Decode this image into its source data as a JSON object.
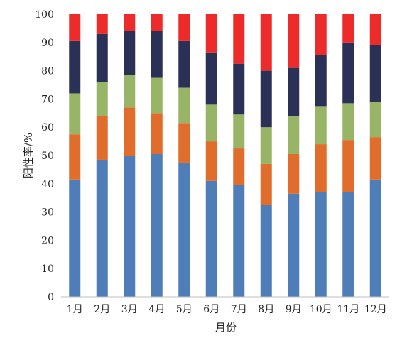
{
  "chart_data": {
    "type": "bar",
    "stacked": true,
    "title": "",
    "xlabel": "月份",
    "ylabel": "阳性率/%",
    "ylim": [
      0,
      100
    ],
    "yticks": [
      0,
      10,
      20,
      30,
      40,
      50,
      60,
      70,
      80,
      90,
      100
    ],
    "grid": false,
    "legend": false,
    "categories": [
      "1月",
      "2月",
      "3月",
      "4月",
      "5月",
      "6月",
      "7月",
      "8月",
      "9月",
      "10月",
      "11月",
      "12月"
    ],
    "series": [
      {
        "color": "#4f7db8",
        "values": [
          41.5,
          48.5,
          50.0,
          50.5,
          47.5,
          41.0,
          39.5,
          32.5,
          36.5,
          37.0,
          37.0,
          41.5
        ]
      },
      {
        "color": "#e06d2b",
        "values": [
          16.0,
          15.5,
          17.0,
          14.5,
          14.0,
          14.0,
          13.0,
          14.5,
          14.0,
          17.0,
          18.5,
          15.0
        ]
      },
      {
        "color": "#98b567",
        "values": [
          14.5,
          12.0,
          11.5,
          12.5,
          12.5,
          13.0,
          12.0,
          13.0,
          13.5,
          13.5,
          13.0,
          12.5
        ]
      },
      {
        "color": "#2b3057",
        "values": [
          18.5,
          17.0,
          15.5,
          16.5,
          16.5,
          18.5,
          18.0,
          20.0,
          17.0,
          18.0,
          21.5,
          20.0
        ]
      },
      {
        "color": "#ee2b2b",
        "values": [
          9.5,
          7.0,
          6.0,
          6.0,
          9.5,
          13.5,
          17.5,
          20.0,
          19.0,
          14.5,
          10.0,
          11.0
        ]
      }
    ]
  }
}
